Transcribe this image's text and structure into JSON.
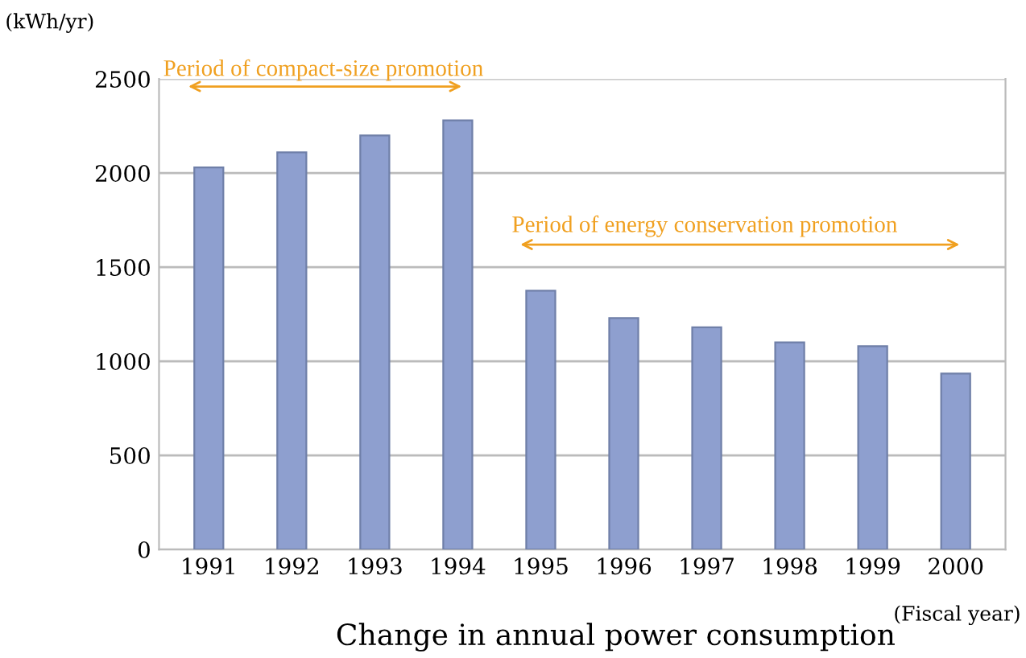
{
  "chart_data": {
    "type": "bar",
    "title": "Change in annual power consumption",
    "ylabel": "(kWh/yr)",
    "xlabel": "(Fiscal year)",
    "categories": [
      "1991",
      "1992",
      "1993",
      "1994",
      "1995",
      "1996",
      "1997",
      "1998",
      "1999",
      "2000"
    ],
    "values": [
      2030,
      2110,
      2200,
      2280,
      1375,
      1230,
      1180,
      1100,
      1080,
      935
    ],
    "color": "#8e9fcf",
    "ylim": [
      0,
      2500
    ],
    "yticks": [
      0,
      500,
      1000,
      1500,
      2000,
      2500
    ],
    "grid": "y",
    "annotations": [
      "Period of compact-size promotion",
      "Period of energy conservation promotion"
    ]
  }
}
